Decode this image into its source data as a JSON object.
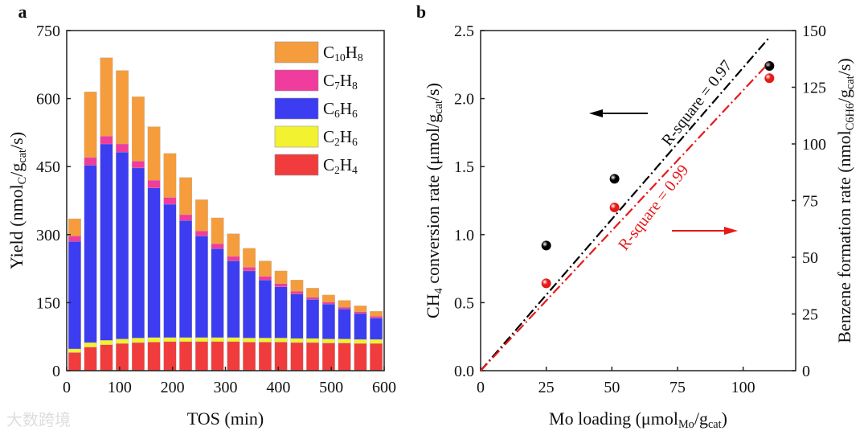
{
  "chart_data": [
    {
      "panel": "a",
      "type": "bar",
      "stacked": true,
      "xlabel": "TOS (min)",
      "ylabel": "Yield (nmol_C/g_cat/s)",
      "xlim": [
        0,
        600
      ],
      "ylim": [
        0,
        750
      ],
      "xticks": [
        0,
        100,
        200,
        300,
        400,
        500,
        600
      ],
      "yticks": [
        0,
        150,
        300,
        450,
        600,
        750
      ],
      "legend_position": "top-right",
      "x": [
        15,
        45,
        75,
        105,
        135,
        165,
        195,
        225,
        255,
        285,
        315,
        345,
        375,
        405,
        435,
        465,
        495,
        525,
        555,
        585
      ],
      "series": [
        {
          "name": "C2H4",
          "label_main": "C",
          "label_sub1": "2",
          "label_h": "H",
          "label_sub2": "4",
          "color": "#f03c3c",
          "values": [
            40,
            52,
            57,
            60,
            62,
            63,
            64,
            64,
            64,
            64,
            64,
            63,
            63,
            63,
            62,
            62,
            61,
            61,
            60,
            60
          ]
        },
        {
          "name": "C2H6",
          "label_main": "C",
          "label_sub1": "2",
          "label_h": "H",
          "label_sub2": "6",
          "color": "#f2f230",
          "values": [
            8,
            10,
            10,
            10,
            10,
            10,
            9,
            9,
            9,
            9,
            9,
            9,
            9,
            9,
            9,
            9,
            9,
            9,
            9,
            9
          ]
        },
        {
          "name": "C6H6",
          "label_main": "C",
          "label_sub1": "6",
          "label_h": "H",
          "label_sub2": "6",
          "color": "#3c3cf0",
          "values": [
            237,
            391,
            433,
            412,
            375,
            330,
            294,
            258,
            224,
            196,
            169,
            148,
            128,
            113,
            98,
            86,
            77,
            66,
            57,
            47
          ]
        },
        {
          "name": "C7H8",
          "label_main": "C",
          "label_sub1": "7",
          "label_h": "H",
          "label_sub2": "8",
          "color": "#f03c9c",
          "values": [
            12,
            17,
            17,
            18,
            15,
            17,
            15,
            13,
            11,
            11,
            10,
            8,
            8,
            7,
            6,
            5,
            4,
            4,
            4,
            4
          ]
        },
        {
          "name": "C10H8",
          "label_main": "C",
          "label_sub1": "10",
          "label_h": "H",
          "label_sub2": "8",
          "color": "#f59c3c",
          "values": [
            38,
            145,
            173,
            162,
            142,
            118,
            97,
            82,
            69,
            57,
            50,
            42,
            34,
            28,
            25,
            20,
            16,
            15,
            13,
            11
          ]
        }
      ]
    },
    {
      "panel": "b",
      "type": "scatter",
      "xlabel": "Mo loading (μmol_Mo/g_cat)",
      "ylabel_left": "CH4 conversion rate (μmol/g_cat/s)",
      "ylabel_right": "Benzene formation rate (nmol_C6H6/g_cat/s)",
      "xlim": [
        0,
        120
      ],
      "ylim_left": [
        0,
        2.5
      ],
      "ylim_right": [
        0,
        150
      ],
      "xticks": [
        0,
        25,
        50,
        75,
        100
      ],
      "yticks_left": [
        "0.0",
        "0.5",
        "1.0",
        "1.5",
        "2.0",
        "2.5"
      ],
      "yticks_right": [
        0,
        25,
        50,
        75,
        100,
        125,
        150
      ],
      "series": [
        {
          "name": "CH4 conversion rate",
          "axis": "left",
          "color": "#000000",
          "x": [
            25,
            51,
            110
          ],
          "y": [
            0.92,
            1.41,
            2.24
          ],
          "fit": {
            "x": [
              0,
              110
            ],
            "y": [
              0,
              2.45
            ],
            "label": "R-square = 0.97"
          }
        },
        {
          "name": "Benzene formation rate",
          "axis": "right",
          "color": "#e61919",
          "x": [
            25,
            51,
            110
          ],
          "y": [
            38.5,
            72,
            129
          ],
          "fit": {
            "x": [
              0,
              110
            ],
            "y": [
              0,
              136
            ],
            "label": "R-square = 0.99"
          }
        }
      ]
    }
  ],
  "panel_labels": [
    "a",
    "b"
  ],
  "watermark": "大数跨境"
}
